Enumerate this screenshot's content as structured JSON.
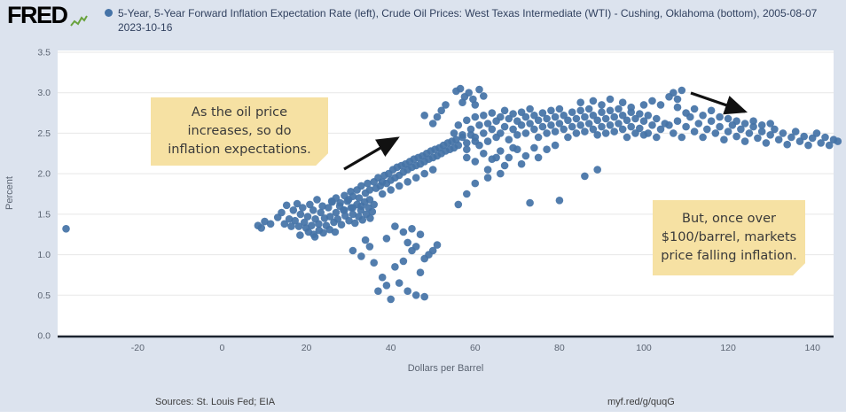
{
  "header": {
    "logo_text": "FRED",
    "legend_dot_color": "#4573a7",
    "title": "5-Year, 5-Year Forward Inflation Expectation Rate (left), Crude Oil Prices: West Texas Intermediate (WTI) - Cushing, Oklahoma (bottom), 2005-08-07 2023-10-16"
  },
  "annotations": [
    {
      "text": "As the oil price\nincreases, so do\ninflation expectations."
    },
    {
      "text": "But, once over\n$100/barrel, markets\nprice falling inflation."
    }
  ],
  "footer": {
    "sources": "Sources: St. Louis Fed; EIA",
    "link": "myf.red/g/quqG"
  },
  "chart_data": {
    "type": "scatter",
    "xlabel": "Dollars per Barrel",
    "ylabel": "Percent",
    "xlim": [
      -39,
      145
    ],
    "ylim": [
      0,
      3.5
    ],
    "x_ticks": [
      -20,
      0,
      20,
      40,
      60,
      80,
      100,
      120,
      140
    ],
    "y_ticks": [
      "0.0",
      "0.5",
      "1.0",
      "1.5",
      "2.0",
      "2.5",
      "3.0",
      "3.5"
    ],
    "point_color": "#4573a7",
    "points": [
      [
        -37,
        1.32
      ],
      [
        8.5,
        1.36
      ],
      [
        9.3,
        1.33
      ],
      [
        10.1,
        1.41
      ],
      [
        11.5,
        1.38
      ],
      [
        13.2,
        1.46
      ],
      [
        14.1,
        1.52
      ],
      [
        14.8,
        1.38
      ],
      [
        15.3,
        1.61
      ],
      [
        15.9,
        1.44
      ],
      [
        16.4,
        1.35
      ],
      [
        16.9,
        1.55
      ],
      [
        17.3,
        1.42
      ],
      [
        17.8,
        1.63
      ],
      [
        18.2,
        1.35
      ],
      [
        18.6,
        1.5
      ],
      [
        19.1,
        1.58
      ],
      [
        19.5,
        1.4
      ],
      [
        19.9,
        1.33
      ],
      [
        20.3,
        1.47
      ],
      [
        20.8,
        1.62
      ],
      [
        21.2,
        1.36
      ],
      [
        21.6,
        1.55
      ],
      [
        22.1,
        1.44
      ],
      [
        22.5,
        1.68
      ],
      [
        22.9,
        1.38
      ],
      [
        23.4,
        1.52
      ],
      [
        23.8,
        1.6
      ],
      [
        24.3,
        1.45
      ],
      [
        24.7,
        1.36
      ],
      [
        25.2,
        1.58
      ],
      [
        25.6,
        1.47
      ],
      [
        26.1,
        1.65
      ],
      [
        26.5,
        1.4
      ],
      [
        27,
        1.52
      ],
      [
        27.4,
        1.44
      ],
      [
        27.9,
        1.6
      ],
      [
        28.3,
        1.37
      ],
      [
        28.8,
        1.55
      ],
      [
        29.2,
        1.48
      ],
      [
        29.7,
        1.66
      ],
      [
        30.1,
        1.42
      ],
      [
        30.6,
        1.58
      ],
      [
        31,
        1.5
      ],
      [
        31.5,
        1.39
      ],
      [
        32,
        1.62
      ],
      [
        32.4,
        1.47
      ],
      [
        32.9,
        1.55
      ],
      [
        33.3,
        1.43
      ],
      [
        33.8,
        1.65
      ],
      [
        34.2,
        1.5
      ],
      [
        34.7,
        1.58
      ],
      [
        35.1,
        1.45
      ],
      [
        35.6,
        1.53
      ],
      [
        36,
        1.62
      ],
      [
        18.5,
        1.24
      ],
      [
        20.5,
        1.28
      ],
      [
        21.7,
        1.25
      ],
      [
        23,
        1.3
      ],
      [
        24,
        1.27
      ],
      [
        25.5,
        1.31
      ],
      [
        26.8,
        1.28
      ],
      [
        22,
        1.22
      ],
      [
        26,
        1.66
      ],
      [
        27,
        1.7
      ],
      [
        28,
        1.64
      ],
      [
        29,
        1.73
      ],
      [
        30,
        1.68
      ],
      [
        30.5,
        1.78
      ],
      [
        31,
        1.72
      ],
      [
        32,
        1.8
      ],
      [
        32.5,
        1.7
      ],
      [
        33,
        1.85
      ],
      [
        34,
        1.76
      ],
      [
        34.5,
        1.88
      ],
      [
        35,
        1.8
      ],
      [
        36,
        1.9
      ],
      [
        36.5,
        1.82
      ],
      [
        37,
        1.95
      ],
      [
        37.5,
        1.85
      ],
      [
        38,
        1.9
      ],
      [
        38.5,
        1.98
      ],
      [
        39,
        1.88
      ],
      [
        39.5,
        2.0
      ],
      [
        40,
        1.92
      ],
      [
        40.5,
        2.05
      ],
      [
        41,
        1.95
      ],
      [
        41.5,
        2.08
      ],
      [
        42,
        1.98
      ],
      [
        42.5,
        2.1
      ],
      [
        43,
        2.02
      ],
      [
        43.5,
        2.12
      ],
      [
        44,
        2.05
      ],
      [
        44.5,
        2.15
      ],
      [
        45,
        2.08
      ],
      [
        45.5,
        2.18
      ],
      [
        46,
        2.1
      ],
      [
        46.5,
        2.2
      ],
      [
        47,
        2.12
      ],
      [
        47.5,
        2.22
      ],
      [
        48,
        2.15
      ],
      [
        48.5,
        2.25
      ],
      [
        49,
        2.18
      ],
      [
        49.5,
        2.28
      ],
      [
        50,
        2.2
      ],
      [
        50.5,
        2.3
      ],
      [
        51,
        2.22
      ],
      [
        51.5,
        2.32
      ],
      [
        52,
        2.25
      ],
      [
        52.5,
        2.35
      ],
      [
        53,
        2.28
      ],
      [
        53.5,
        2.38
      ],
      [
        54,
        2.3
      ],
      [
        54.5,
        2.4
      ],
      [
        55,
        2.32
      ],
      [
        55.5,
        2.42
      ],
      [
        56,
        2.35
      ],
      [
        57,
        2.45
      ],
      [
        58,
        2.38
      ],
      [
        59,
        2.48
      ],
      [
        60,
        2.4
      ],
      [
        38,
        1.75
      ],
      [
        40,
        1.8
      ],
      [
        42,
        1.85
      ],
      [
        44,
        1.9
      ],
      [
        46,
        1.95
      ],
      [
        48,
        2.0
      ],
      [
        50,
        2.05
      ],
      [
        35,
        1.68
      ],
      [
        33,
        1.6
      ],
      [
        31,
        1.58
      ],
      [
        29,
        1.55
      ],
      [
        55,
        2.5
      ],
      [
        56,
        2.6
      ],
      [
        57,
        2.48
      ],
      [
        58,
        2.66
      ],
      [
        58,
        2.3
      ],
      [
        59,
        2.55
      ],
      [
        60,
        2.7
      ],
      [
        60,
        2.45
      ],
      [
        61,
        2.6
      ],
      [
        61,
        2.35
      ],
      [
        62,
        2.72
      ],
      [
        62,
        2.5
      ],
      [
        63,
        2.62
      ],
      [
        63,
        2.4
      ],
      [
        64,
        2.75
      ],
      [
        64,
        2.55
      ],
      [
        65,
        2.65
      ],
      [
        65,
        2.45
      ],
      [
        66,
        2.7
      ],
      [
        66,
        2.5
      ],
      [
        67,
        2.78
      ],
      [
        67,
        2.58
      ],
      [
        68,
        2.68
      ],
      [
        68,
        2.42
      ],
      [
        69,
        2.74
      ],
      [
        69,
        2.55
      ],
      [
        70,
        2.65
      ],
      [
        70,
        2.48
      ],
      [
        71,
        2.76
      ],
      [
        71,
        2.6
      ],
      [
        72,
        2.7
      ],
      [
        72,
        2.5
      ],
      [
        73,
        2.8
      ],
      [
        73,
        2.62
      ],
      [
        74,
        2.72
      ],
      [
        74,
        2.55
      ],
      [
        75,
        2.66
      ],
      [
        75,
        2.45
      ],
      [
        76,
        2.75
      ],
      [
        76,
        2.58
      ],
      [
        77,
        2.68
      ],
      [
        77,
        2.5
      ],
      [
        78,
        2.78
      ],
      [
        78,
        2.6
      ],
      [
        79,
        2.7
      ],
      [
        79,
        2.52
      ],
      [
        80,
        2.8
      ],
      [
        80,
        2.62
      ],
      [
        81,
        2.72
      ],
      [
        81,
        2.55
      ],
      [
        82,
        2.66
      ],
      [
        82,
        2.45
      ],
      [
        83,
        2.76
      ],
      [
        83,
        2.58
      ],
      [
        84,
        2.68
      ],
      [
        84,
        2.5
      ],
      [
        85,
        2.78
      ],
      [
        85,
        2.6
      ],
      [
        86,
        2.7
      ],
      [
        86,
        2.52
      ],
      [
        87,
        2.8
      ],
      [
        87,
        2.62
      ],
      [
        88,
        2.72
      ],
      [
        88,
        2.55
      ],
      [
        89,
        2.66
      ],
      [
        89,
        2.48
      ],
      [
        90,
        2.76
      ],
      [
        90,
        2.58
      ],
      [
        91,
        2.68
      ],
      [
        91,
        2.5
      ],
      [
        92,
        2.78
      ],
      [
        92,
        2.6
      ],
      [
        93,
        2.7
      ],
      [
        93,
        2.52
      ],
      [
        94,
        2.8
      ],
      [
        94,
        2.62
      ],
      [
        95,
        2.72
      ],
      [
        95,
        2.55
      ],
      [
        96,
        2.66
      ],
      [
        96,
        2.45
      ],
      [
        97,
        2.76
      ],
      [
        97,
        2.58
      ],
      [
        98,
        2.68
      ],
      [
        98,
        2.5
      ],
      [
        99,
        2.74
      ],
      [
        99,
        2.56
      ],
      [
        100,
        2.65
      ],
      [
        100,
        2.48
      ],
      [
        101,
        2.72
      ],
      [
        102,
        2.6
      ],
      [
        103,
        2.68
      ],
      [
        104,
        2.55
      ],
      [
        105,
        2.62
      ],
      [
        101,
        2.5
      ],
      [
        103,
        2.45
      ],
      [
        58,
        2.2
      ],
      [
        60,
        2.15
      ],
      [
        62,
        2.25
      ],
      [
        64,
        2.18
      ],
      [
        66,
        2.28
      ],
      [
        68,
        2.2
      ],
      [
        70,
        2.3
      ],
      [
        72,
        2.22
      ],
      [
        74,
        2.32
      ],
      [
        63,
        2.05
      ],
      [
        67,
        2.1
      ],
      [
        71,
        2.12
      ],
      [
        75,
        2.2
      ],
      [
        77,
        2.3
      ],
      [
        79,
        2.35
      ],
      [
        65,
        2.2
      ],
      [
        69,
        2.32
      ],
      [
        56,
        1.62
      ],
      [
        58,
        1.75
      ],
      [
        60,
        1.88
      ],
      [
        63,
        1.95
      ],
      [
        66,
        2.0
      ],
      [
        73,
        1.64
      ],
      [
        80,
        1.67
      ],
      [
        86,
        1.97
      ],
      [
        89,
        2.05
      ],
      [
        55.5,
        3.02
      ],
      [
        56.5,
        3.05
      ],
      [
        57.5,
        2.95
      ],
      [
        58.5,
        3.0
      ],
      [
        59.5,
        2.92
      ],
      [
        61,
        3.04
      ],
      [
        62,
        2.96
      ],
      [
        57,
        2.88
      ],
      [
        60,
        2.85
      ],
      [
        50,
        2.62
      ],
      [
        51,
        2.7
      ],
      [
        52,
        2.78
      ],
      [
        53,
        2.85
      ],
      [
        48,
        2.72
      ],
      [
        85,
        2.88
      ],
      [
        88,
        2.9
      ],
      [
        90,
        2.85
      ],
      [
        92,
        2.92
      ],
      [
        95,
        2.88
      ],
      [
        97,
        2.82
      ],
      [
        100,
        2.85
      ],
      [
        102,
        2.9
      ],
      [
        104,
        2.85
      ],
      [
        106,
        2.95
      ],
      [
        107,
        3.0
      ],
      [
        108,
        2.92
      ],
      [
        109,
        3.03
      ],
      [
        106,
        2.6
      ],
      [
        107,
        2.5
      ],
      [
        108,
        2.65
      ],
      [
        109,
        2.45
      ],
      [
        110,
        2.58
      ],
      [
        111,
        2.7
      ],
      [
        112,
        2.52
      ],
      [
        113,
        2.62
      ],
      [
        114,
        2.45
      ],
      [
        115,
        2.55
      ],
      [
        116,
        2.65
      ],
      [
        117,
        2.5
      ],
      [
        118,
        2.58
      ],
      [
        119,
        2.42
      ],
      [
        120,
        2.52
      ],
      [
        121,
        2.6
      ],
      [
        122,
        2.46
      ],
      [
        123,
        2.55
      ],
      [
        124,
        2.4
      ],
      [
        125,
        2.5
      ],
      [
        126,
        2.58
      ],
      [
        127,
        2.44
      ],
      [
        128,
        2.52
      ],
      [
        129,
        2.38
      ],
      [
        130,
        2.48
      ],
      [
        131,
        2.55
      ],
      [
        132,
        2.42
      ],
      [
        133,
        2.5
      ],
      [
        134,
        2.36
      ],
      [
        135,
        2.45
      ],
      [
        136,
        2.52
      ],
      [
        137,
        2.4
      ],
      [
        138,
        2.46
      ],
      [
        139,
        2.35
      ],
      [
        140,
        2.44
      ],
      [
        141,
        2.5
      ],
      [
        142,
        2.38
      ],
      [
        143,
        2.45
      ],
      [
        144,
        2.35
      ],
      [
        145,
        2.42
      ],
      [
        146,
        2.4
      ],
      [
        110,
        2.75
      ],
      [
        112,
        2.8
      ],
      [
        114,
        2.72
      ],
      [
        116,
        2.78
      ],
      [
        108,
        2.82
      ],
      [
        118,
        2.7
      ],
      [
        120,
        2.68
      ],
      [
        122,
        2.65
      ],
      [
        124,
        2.62
      ],
      [
        126,
        2.65
      ],
      [
        128,
        2.6
      ],
      [
        130,
        2.62
      ],
      [
        31,
        1.05
      ],
      [
        33,
        0.98
      ],
      [
        35,
        1.1
      ],
      [
        37,
        0.55
      ],
      [
        38,
        0.72
      ],
      [
        39,
        0.62
      ],
      [
        40,
        0.45
      ],
      [
        41,
        0.85
      ],
      [
        42,
        0.65
      ],
      [
        43,
        0.92
      ],
      [
        44,
        0.55
      ],
      [
        45,
        1.05
      ],
      [
        46,
        0.5
      ],
      [
        47,
        0.78
      ],
      [
        48,
        0.48
      ],
      [
        44,
        1.15
      ],
      [
        46,
        1.1
      ],
      [
        49,
        1.0
      ],
      [
        50,
        1.05
      ],
      [
        36,
        0.9
      ],
      [
        34,
        1.18
      ],
      [
        48,
        0.95
      ],
      [
        39,
        1.2
      ],
      [
        41,
        1.35
      ],
      [
        43,
        1.28
      ],
      [
        45,
        1.32
      ],
      [
        47,
        1.25
      ],
      [
        51,
        1.12
      ]
    ]
  }
}
